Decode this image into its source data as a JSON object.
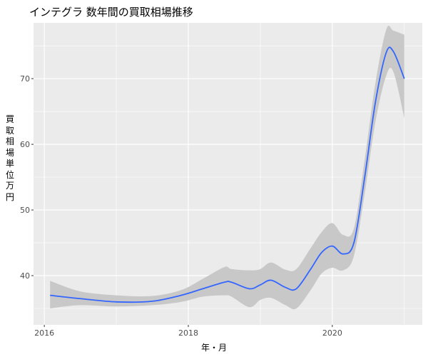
{
  "chart_data": {
    "type": "line",
    "title": "インテグラ 数年間の買取相場推移",
    "xlabel": "年・月",
    "ylabel": "買取相場　単位　万円",
    "xlim": [
      2015.85,
      2021.25
    ],
    "ylim": [
      32.5,
      78.5
    ],
    "x_ticks": [
      2016,
      2018,
      2020
    ],
    "x_tick_labels": [
      "2016",
      "2018",
      "2020"
    ],
    "y_ticks": [
      40,
      50,
      60,
      70
    ],
    "y_tick_labels": [
      "40",
      "50",
      "60",
      "70"
    ],
    "grid": true,
    "smoothing": "loess with confidence band",
    "series": [
      {
        "x": [
          2016.08,
          2016.5,
          2017.0,
          2017.5,
          2017.9,
          2018.2,
          2018.5,
          2018.6,
          2018.85,
          2019.0,
          2019.15,
          2019.35,
          2019.5,
          2019.7,
          2019.85,
          2020.0,
          2020.15,
          2020.3,
          2020.45,
          2020.6,
          2020.75,
          2020.85,
          2021.0
        ],
        "y": [
          37.0,
          36.5,
          36.0,
          36.1,
          37.0,
          38.0,
          39.0,
          39.0,
          38.0,
          38.6,
          39.3,
          38.2,
          38.0,
          41.0,
          43.5,
          44.5,
          43.3,
          45.0,
          55.0,
          66.5,
          74.0,
          74.1,
          70.0
        ],
        "lower": [
          35.0,
          35.5,
          35.3,
          35.5,
          36.0,
          36.8,
          37.0,
          36.8,
          35.2,
          36.3,
          36.6,
          35.5,
          35.0,
          37.8,
          40.3,
          41.2,
          40.8,
          43.0,
          52.5,
          63.5,
          70.5,
          71.0,
          64.0
        ],
        "upper": [
          39.2,
          37.6,
          37.0,
          36.9,
          37.8,
          39.5,
          41.3,
          41.0,
          40.8,
          41.0,
          42.0,
          40.9,
          41.0,
          44.2,
          46.6,
          48.0,
          46.2,
          47.2,
          57.7,
          69.4,
          77.5,
          77.3,
          76.7
        ]
      }
    ]
  },
  "colors": {
    "line": "#3366FF",
    "band": "#c8c8c8",
    "panel": "#EBEBEB",
    "grid_major": "#ffffff"
  }
}
